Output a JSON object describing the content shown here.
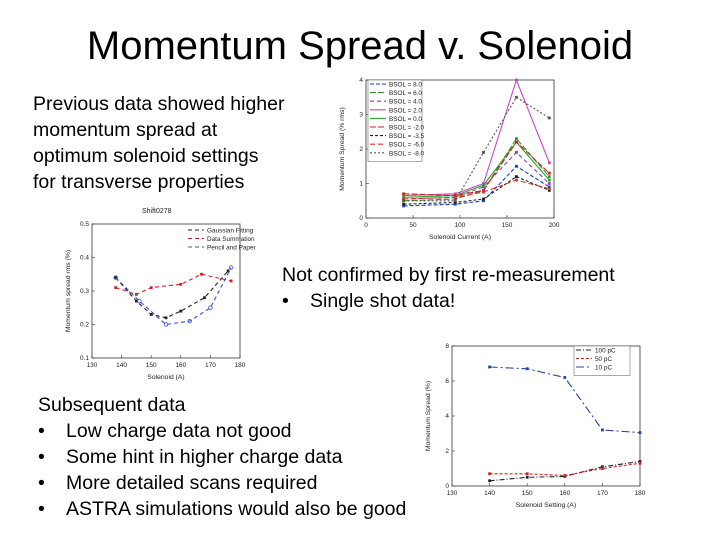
{
  "slide": {
    "title": "Momentum Spread v. Solenoid",
    "intro": [
      "Previous data showed higher",
      "momentum spread at",
      "optimum solenoid settings",
      "for transverse properties"
    ],
    "confirm": {
      "heading": "Not confirmed by first re-measurement",
      "bullets": [
        "Single shot data!"
      ]
    },
    "subsequent": {
      "heading": "Subsequent data",
      "bullets": [
        "Low charge data not good",
        "Some hint in higher charge data",
        "More detailed scans required",
        "ASTRA simulations would also be good"
      ]
    },
    "bullet_glyph": "•"
  },
  "chart_data": [
    {
      "type": "line",
      "xlabel": "Solenoid Current (A)",
      "ylabel": "Momentum Spread (% rms)",
      "xlim": [
        0,
        200
      ],
      "ylim": [
        0,
        4
      ],
      "xticks": [
        0,
        50,
        100,
        150,
        200
      ],
      "yticks": [
        0,
        1,
        2,
        3,
        4
      ],
      "legend_position": "top-left",
      "x": [
        40,
        95,
        125,
        160,
        195
      ],
      "series": [
        {
          "name": "BSOL = 8.0",
          "color": "#1c3fbf",
          "dash": "4,2",
          "values": [
            0.35,
            0.4,
            0.5,
            1.5,
            0.9
          ]
        },
        {
          "name": "BSOL = 6.0",
          "color": "#3a8a3a",
          "dash": "6,2",
          "values": [
            0.5,
            0.55,
            0.8,
            2.3,
            1.2
          ]
        },
        {
          "name": "BSOL = 4.0",
          "color": "#8a3fbf",
          "dash": "4,3",
          "values": [
            0.55,
            0.6,
            0.9,
            1.9,
            1.0
          ]
        },
        {
          "name": "BSOL = 2.0",
          "color": "#cc44cc",
          "dash": "",
          "values": [
            0.65,
            0.7,
            1.0,
            4.0,
            1.6
          ]
        },
        {
          "name": "BSOL = 0.0",
          "color": "#22aa22",
          "dash": "",
          "values": [
            0.6,
            0.65,
            0.95,
            2.2,
            1.1
          ]
        },
        {
          "name": "BSOL = -2.0",
          "color": "#cc2222",
          "dash": "6,2",
          "values": [
            0.7,
            0.65,
            0.8,
            2.2,
            1.3
          ]
        },
        {
          "name": "BSOL = -3.5",
          "color": "#222222",
          "dash": "3,2",
          "values": [
            0.4,
            0.45,
            0.55,
            1.2,
            0.8
          ]
        },
        {
          "name": "BSOL = -6.0",
          "color": "#dd3333",
          "dash": "5,3",
          "values": [
            0.55,
            0.6,
            0.75,
            1.1,
            0.85
          ]
        },
        {
          "name": "BSOL = -8.0",
          "color": "#555555",
          "dash": "2,2",
          "values": [
            0.5,
            0.5,
            1.9,
            3.5,
            2.9
          ]
        }
      ]
    },
    {
      "type": "scatter",
      "title": "Shift0278",
      "xlabel": "Solenoid (A)",
      "ylabel": "Momentum spread rms (%)",
      "xlim": [
        130,
        180
      ],
      "ylim": [
        0.1,
        0.5
      ],
      "xticks": [
        130,
        140,
        150,
        160,
        170,
        180
      ],
      "yticks": [
        0.1,
        0.2,
        0.3,
        0.4,
        0.5
      ],
      "legend_position": "top-right",
      "series": [
        {
          "name": "Gaussian Fitting",
          "color": "#222222",
          "dash": "4,3",
          "marker": "square",
          "x": [
            138,
            145,
            150,
            155,
            160,
            168,
            176
          ],
          "y": [
            0.34,
            0.27,
            0.23,
            0.22,
            0.24,
            0.28,
            0.36
          ]
        },
        {
          "name": "Data Summation",
          "color": "#cc2222",
          "dash": "4,3",
          "marker": "square",
          "x": [
            138,
            145,
            150,
            160,
            167,
            177
          ],
          "y": [
            0.31,
            0.29,
            0.31,
            0.32,
            0.35,
            0.33
          ]
        },
        {
          "name": "Pencil and Paper",
          "color": "#3355cc",
          "dash": "4,3",
          "marker": "circle",
          "x": [
            138,
            146,
            155,
            163,
            170,
            177
          ],
          "y": [
            0.34,
            0.27,
            0.2,
            0.21,
            0.25,
            0.37
          ]
        }
      ]
    },
    {
      "type": "line",
      "xlabel": "Solenoid Setting (A)",
      "ylabel": "Momentum Spread (%)",
      "xlim": [
        130,
        180
      ],
      "ylim": [
        0,
        8
      ],
      "xticks": [
        130,
        140,
        150,
        160,
        170,
        180
      ],
      "yticks": [
        0,
        2,
        4,
        6,
        8
      ],
      "legend_position": "top-right",
      "x": [
        140,
        150,
        160,
        170,
        180
      ],
      "series": [
        {
          "name": "100 pC",
          "color": "#222222",
          "dash": "5,2,1,2",
          "values": [
            0.3,
            0.5,
            0.55,
            1.1,
            1.4
          ]
        },
        {
          "name": "50 pC",
          "color": "#cc2222",
          "dash": "3,2",
          "values": [
            0.7,
            0.7,
            0.6,
            1.0,
            1.3
          ]
        },
        {
          "name": "10 pC",
          "color": "#2244aa",
          "dash": "8,3,2,3",
          "values": [
            6.8,
            6.7,
            6.2,
            3.2,
            3.05
          ]
        }
      ]
    }
  ]
}
